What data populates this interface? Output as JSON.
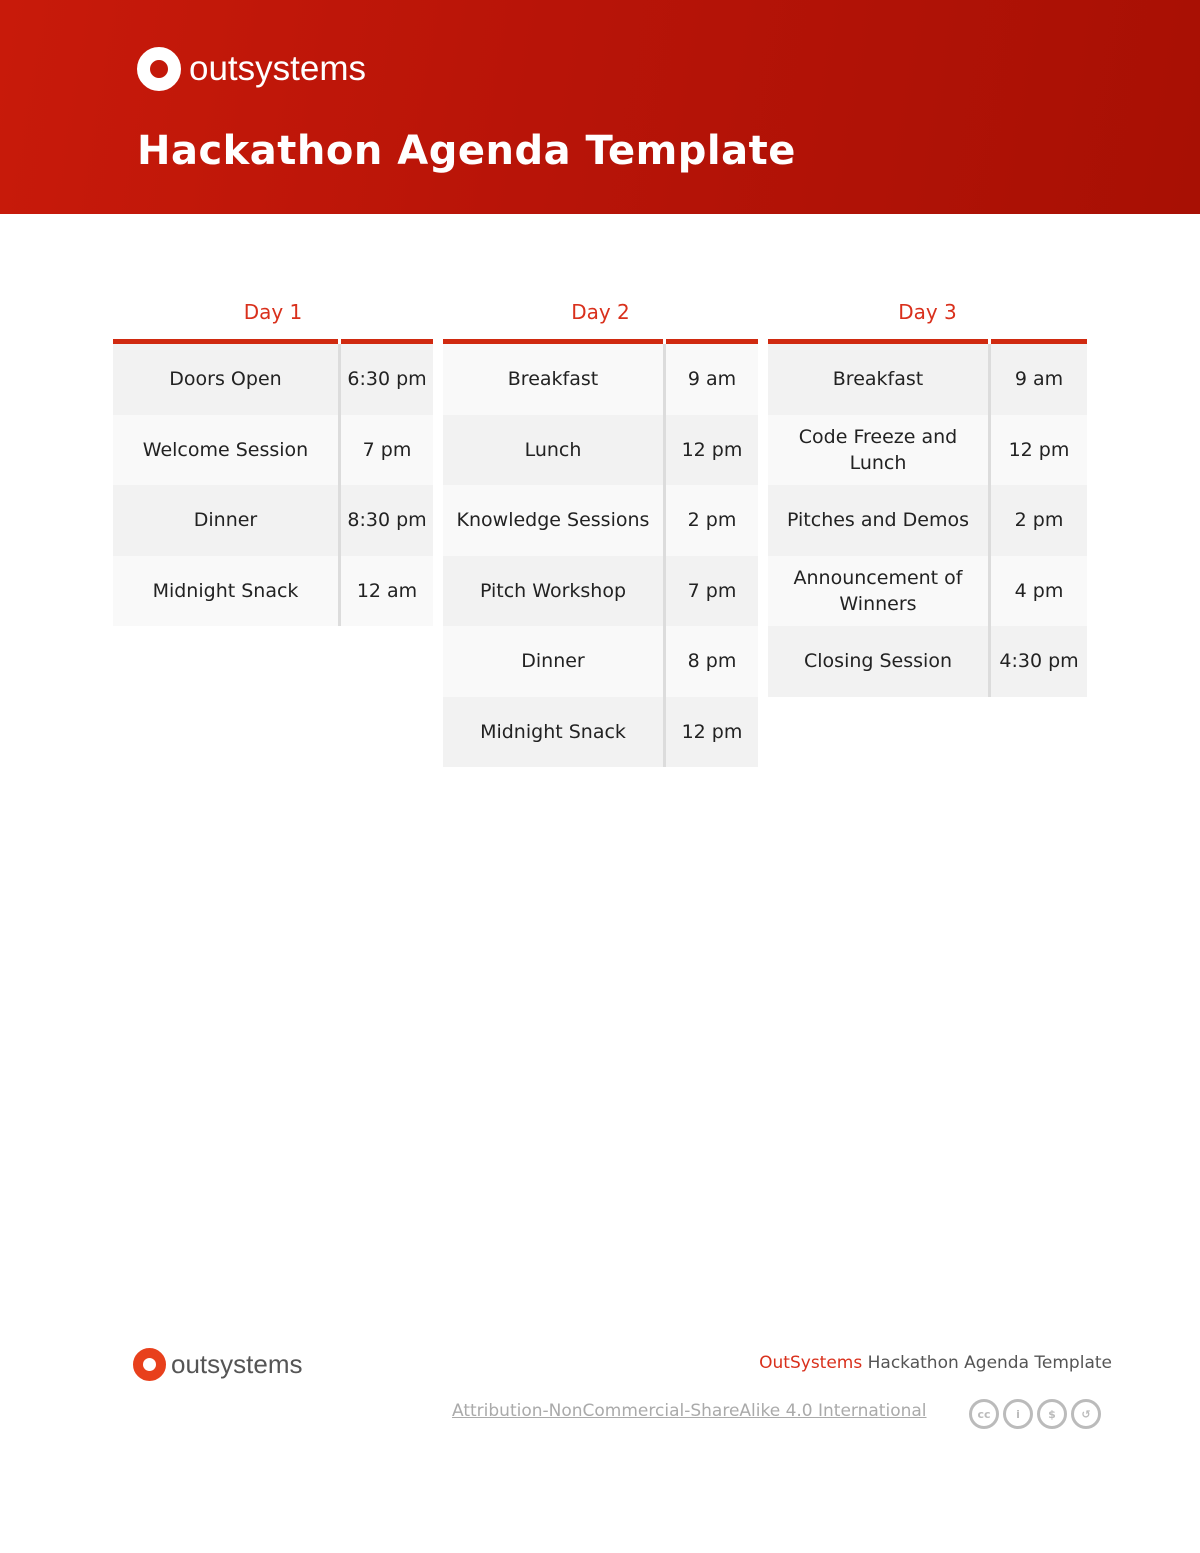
{
  "header": {
    "logo_text": "outsystems",
    "title": "Hackathon Agenda Template"
  },
  "days": [
    {
      "label": "Day 1",
      "rows": [
        [
          "Doors Open",
          "6:30 pm"
        ],
        [
          "Welcome Session",
          "7 pm"
        ],
        [
          "Dinner",
          "8:30 pm"
        ],
        [
          "Midnight Snack",
          "12 am"
        ]
      ]
    },
    {
      "label": "Day 2",
      "rows": [
        [
          "Breakfast",
          "9 am"
        ],
        [
          "Lunch",
          "12 pm"
        ],
        [
          "Knowledge Sessions",
          "2 pm"
        ],
        [
          "Pitch Workshop",
          "7 pm"
        ],
        [
          "Dinner",
          "8 pm"
        ],
        [
          "Midnight Snack",
          "12 pm"
        ]
      ]
    },
    {
      "label": "Day 3",
      "rows": [
        [
          "Breakfast",
          "9 am"
        ],
        [
          "Code Freeze and Lunch",
          "12 pm"
        ],
        [
          "Pitches and Demos",
          "2 pm"
        ],
        [
          "Announcement of Winners",
          "4 pm"
        ],
        [
          "Closing Session",
          "4:30 pm"
        ]
      ]
    }
  ],
  "footer": {
    "logo_text": "outsystems",
    "brand": "OutSystems",
    "doc_title": "Hackathon Agenda Template",
    "license": "Attribution-NonCommercial-ShareAlike 4.0 International",
    "license_icons": [
      "cc-icon",
      "by-icon",
      "nc-icon",
      "sa-icon"
    ]
  },
  "colors": {
    "accent": "#d9301c",
    "banner": "#b81408"
  }
}
